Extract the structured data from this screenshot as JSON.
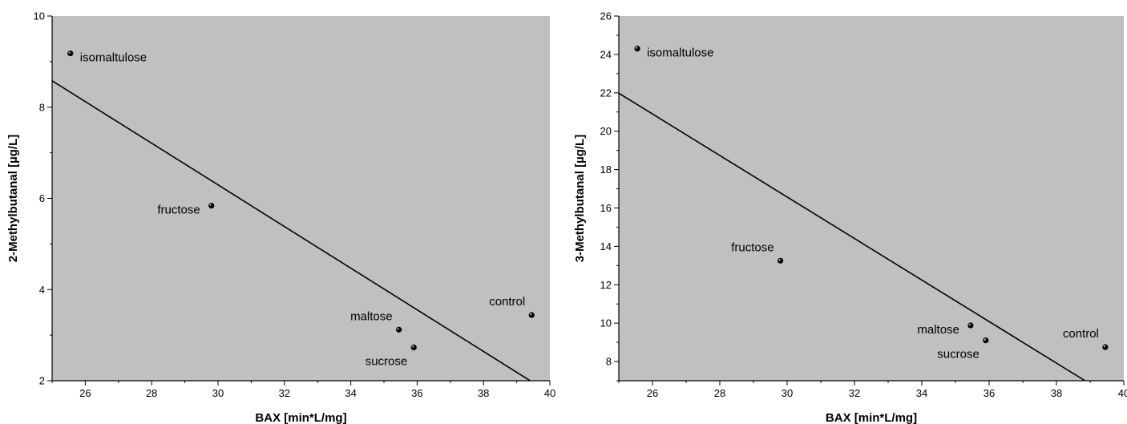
{
  "chart_data": [
    {
      "type": "scatter",
      "xlabel": "BAX [min*L/mg]",
      "ylabel": "2-Methylbutanal [µg/L]",
      "xlim": [
        25,
        40
      ],
      "ylim": [
        2,
        10
      ],
      "xticks": [
        "26",
        "28",
        "30",
        "32",
        "34",
        "36",
        "38",
        "40"
      ],
      "yticks": [
        "2",
        "4",
        "6",
        "8",
        "10"
      ],
      "grid": false,
      "background": "#c0c0c0",
      "points": [
        {
          "label": "isomaltulose",
          "x": 25.55,
          "y": 9.18,
          "label_side": "right"
        },
        {
          "label": "fructose",
          "x": 29.8,
          "y": 5.84,
          "label_side": "left"
        },
        {
          "label": "maltose",
          "x": 35.45,
          "y": 3.12,
          "label_side": "above-left"
        },
        {
          "label": "sucrose",
          "x": 35.9,
          "y": 2.73,
          "label_side": "below-left"
        },
        {
          "label": "control",
          "x": 39.45,
          "y": 3.44,
          "label_side": "above-left"
        }
      ],
      "fit_line": {
        "x": [
          25,
          39.45
        ],
        "y": [
          8.58,
          1.98
        ]
      }
    },
    {
      "type": "scatter",
      "xlabel": "BAX [min*L/mg]",
      "ylabel": "3-Methylbutanal [µg/L]",
      "xlim": [
        25,
        40
      ],
      "ylim": [
        7,
        26
      ],
      "xticks": [
        "26",
        "28",
        "30",
        "32",
        "34",
        "36",
        "38",
        "40"
      ],
      "yticks": [
        "8",
        "10",
        "12",
        "14",
        "16",
        "18",
        "20",
        "22",
        "24",
        "26"
      ],
      "grid": false,
      "background": "#c0c0c0",
      "points": [
        {
          "label": "isomaltulose",
          "x": 25.55,
          "y": 24.3,
          "label_side": "right"
        },
        {
          "label": "fructose",
          "x": 29.8,
          "y": 13.25,
          "label_side": "above-left"
        },
        {
          "label": "maltose",
          "x": 35.45,
          "y": 9.88,
          "label_side": "left"
        },
        {
          "label": "sucrose",
          "x": 35.9,
          "y": 9.1,
          "label_side": "below-left"
        },
        {
          "label": "control",
          "x": 39.45,
          "y": 8.75,
          "label_side": "above-left"
        }
      ],
      "fit_line": {
        "x": [
          25,
          38.85
        ],
        "y": [
          21.98,
          7.0
        ]
      }
    }
  ]
}
